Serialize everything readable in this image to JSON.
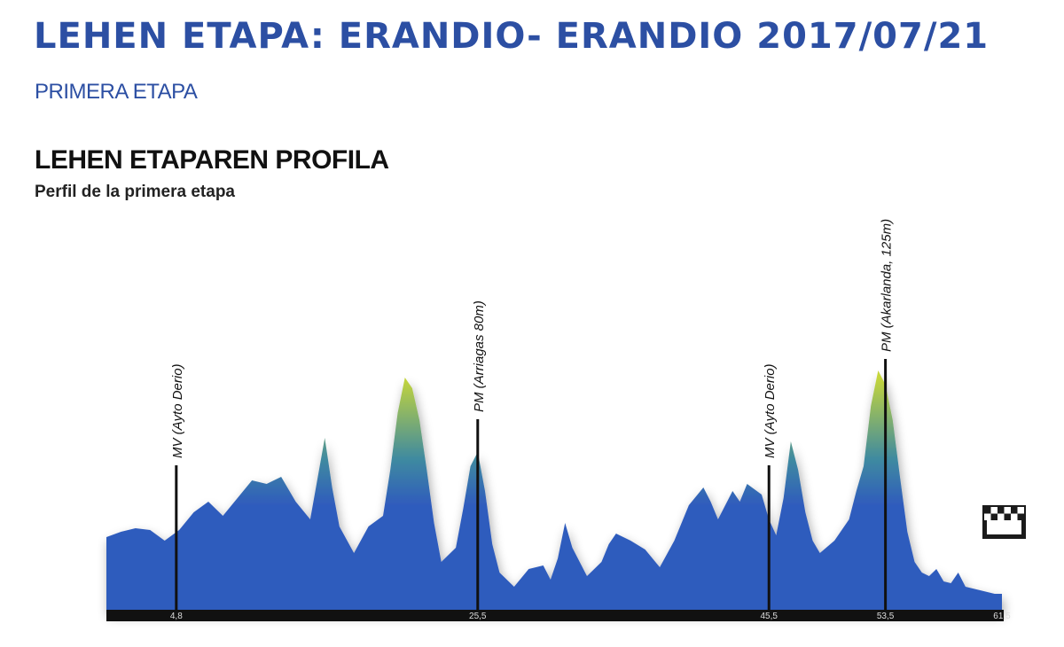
{
  "header": {
    "title": "LEHEN ETAPA: ERANDIO- ERANDIO 2017/07/21",
    "subtitle": "PRIMERA ETAPA"
  },
  "profile": {
    "title": "LEHEN ETAPAREN PROFILA",
    "subtitle": "Perfil de la primera etapa"
  },
  "chart_data": {
    "type": "area",
    "title": "LEHEN ETAPAREN PROFILA",
    "subtitle": "Perfil de la primera etapa",
    "xlabel": "",
    "ylabel": "",
    "x_unit": "km",
    "xlim": [
      0,
      61.5
    ],
    "ylim": [
      0,
      140
    ],
    "grid": false,
    "distance_ticks": [
      {
        "km": 4.8,
        "label": "4,8"
      },
      {
        "km": 25.5,
        "label": "25,5"
      },
      {
        "km": 45.5,
        "label": "45,5"
      },
      {
        "km": 53.5,
        "label": "53,5"
      },
      {
        "km": 61.5,
        "label": "61,5"
      }
    ],
    "markers": [
      {
        "km": 4.8,
        "label": "MV (Ayto Derio)"
      },
      {
        "km": 25.5,
        "label": "PM (Arriagas 80m)"
      },
      {
        "km": 45.5,
        "label": "MV (Ayto Derio)"
      },
      {
        "km": 53.5,
        "label": "PM (Akarlanda, 125m)"
      }
    ],
    "finish_icon": "checkered-flag-icon",
    "profile_points": [
      [
        0,
        42
      ],
      [
        1,
        45
      ],
      [
        2,
        47
      ],
      [
        3,
        46
      ],
      [
        4,
        40
      ],
      [
        5,
        46
      ],
      [
        6,
        56
      ],
      [
        7,
        62
      ],
      [
        8,
        54
      ],
      [
        9,
        64
      ],
      [
        10,
        74
      ],
      [
        11,
        72
      ],
      [
        12,
        76
      ],
      [
        13,
        62
      ],
      [
        14,
        52
      ],
      [
        14.5,
        75
      ],
      [
        15,
        98
      ],
      [
        15.5,
        70
      ],
      [
        16,
        48
      ],
      [
        17,
        33
      ],
      [
        18,
        48
      ],
      [
        19,
        54
      ],
      [
        19.5,
        80
      ],
      [
        20,
        112
      ],
      [
        20.5,
        132
      ],
      [
        21,
        126
      ],
      [
        21.5,
        108
      ],
      [
        22,
        80
      ],
      [
        22.5,
        50
      ],
      [
        23,
        28
      ],
      [
        24,
        36
      ],
      [
        24.5,
        58
      ],
      [
        25,
        82
      ],
      [
        25.5,
        90
      ],
      [
        26,
        68
      ],
      [
        26.5,
        38
      ],
      [
        27,
        22
      ],
      [
        28,
        14
      ],
      [
        29,
        24
      ],
      [
        30,
        26
      ],
      [
        30.5,
        18
      ],
      [
        31,
        30
      ],
      [
        31.5,
        50
      ],
      [
        32,
        36
      ],
      [
        33,
        20
      ],
      [
        34,
        28
      ],
      [
        34.5,
        38
      ],
      [
        35,
        44
      ],
      [
        36,
        40
      ],
      [
        37,
        35
      ],
      [
        38,
        25
      ],
      [
        39,
        40
      ],
      [
        40,
        60
      ],
      [
        41,
        70
      ],
      [
        41.5,
        62
      ],
      [
        42,
        52
      ],
      [
        43,
        68
      ],
      [
        43.5,
        62
      ],
      [
        44,
        72
      ],
      [
        45,
        66
      ],
      [
        45.5,
        52
      ],
      [
        46,
        43
      ],
      [
        46.5,
        64
      ],
      [
        47,
        96
      ],
      [
        47.5,
        80
      ],
      [
        48,
        56
      ],
      [
        48.5,
        40
      ],
      [
        49,
        33
      ],
      [
        50,
        40
      ],
      [
        51,
        52
      ],
      [
        51.5,
        68
      ],
      [
        52,
        82
      ],
      [
        52.5,
        116
      ],
      [
        53,
        136
      ],
      [
        53.5,
        128
      ],
      [
        54,
        108
      ],
      [
        54.5,
        76
      ],
      [
        55,
        45
      ],
      [
        55.5,
        28
      ],
      [
        56,
        22
      ],
      [
        56.5,
        20
      ],
      [
        57,
        24
      ],
      [
        57.5,
        17
      ],
      [
        58,
        16
      ],
      [
        58.5,
        22
      ],
      [
        59,
        14
      ],
      [
        60,
        12
      ],
      [
        61,
        10
      ],
      [
        61.5,
        10
      ]
    ],
    "colors": {
      "low": "#2f5bbd",
      "mid": "#3f8aa0",
      "high": "#c6d63a",
      "baseline": "#111111"
    }
  }
}
